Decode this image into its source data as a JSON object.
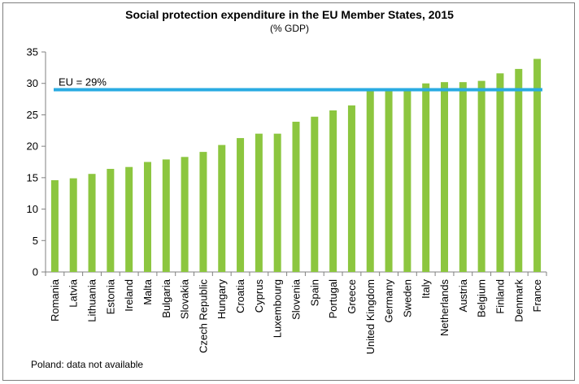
{
  "chart_data": {
    "type": "bar",
    "title": "Social protection expenditure in the EU Member States, 2015",
    "subtitle": "(% GDP)",
    "categories": [
      "Romania",
      "Latvia",
      "Lithuania",
      "Estonia",
      "Ireland",
      "Malta",
      "Bulgaria",
      "Slovakia",
      "Czech Republic",
      "Hungary",
      "Croatia",
      "Cyprus",
      "Luxembourg",
      "Slovenia",
      "Spain",
      "Portugal",
      "Greece",
      "United Kingdom",
      "Germany",
      "Sweden",
      "Italy",
      "Netherlands",
      "Austria",
      "Belgium",
      "Finland",
      "Denmark",
      "France"
    ],
    "values": [
      14.6,
      14.9,
      15.6,
      16.4,
      16.7,
      17.5,
      17.9,
      18.3,
      19.1,
      20.2,
      21.3,
      22.0,
      22.0,
      23.9,
      24.7,
      25.7,
      26.5,
      29.0,
      29.0,
      29.2,
      30.0,
      30.2,
      30.2,
      30.4,
      31.6,
      32.3,
      33.9
    ],
    "ylim": [
      0,
      35
    ],
    "yticks": [
      0,
      5,
      10,
      15,
      20,
      25,
      30,
      35
    ],
    "xlabel": "",
    "ylabel": "",
    "grid": false,
    "bar_color": "#8cc63f",
    "reference_line": {
      "value": 29,
      "label": "EU = 29%",
      "color": "#29abe2"
    },
    "footnote": "Poland: data not available"
  }
}
